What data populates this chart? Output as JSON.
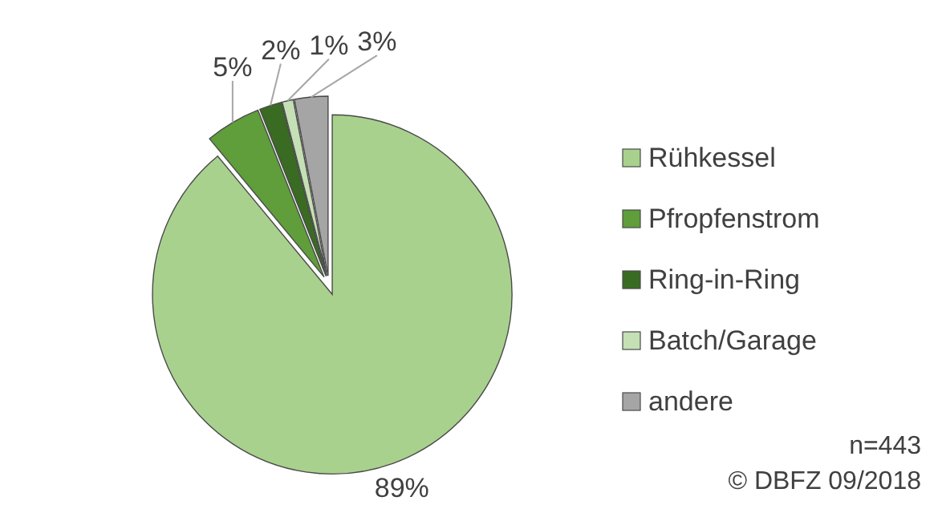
{
  "chart_data": {
    "type": "pie",
    "categories": [
      "Rühkessel",
      "Pfropfenstrom",
      "Ring-in-Ring",
      "Batch/Garage",
      "andere"
    ],
    "values": [
      89,
      5,
      2,
      1,
      3
    ],
    "colors": [
      "#a9d18e",
      "#5f9e3a",
      "#3a6b23",
      "#c5e0b4",
      "#a5a5a5"
    ],
    "value_labels": [
      "89%",
      "5%",
      "2%",
      "1%",
      "3%"
    ],
    "legend": "right",
    "annotations": [
      "n=443",
      "© DBFZ 09/2018"
    ]
  }
}
